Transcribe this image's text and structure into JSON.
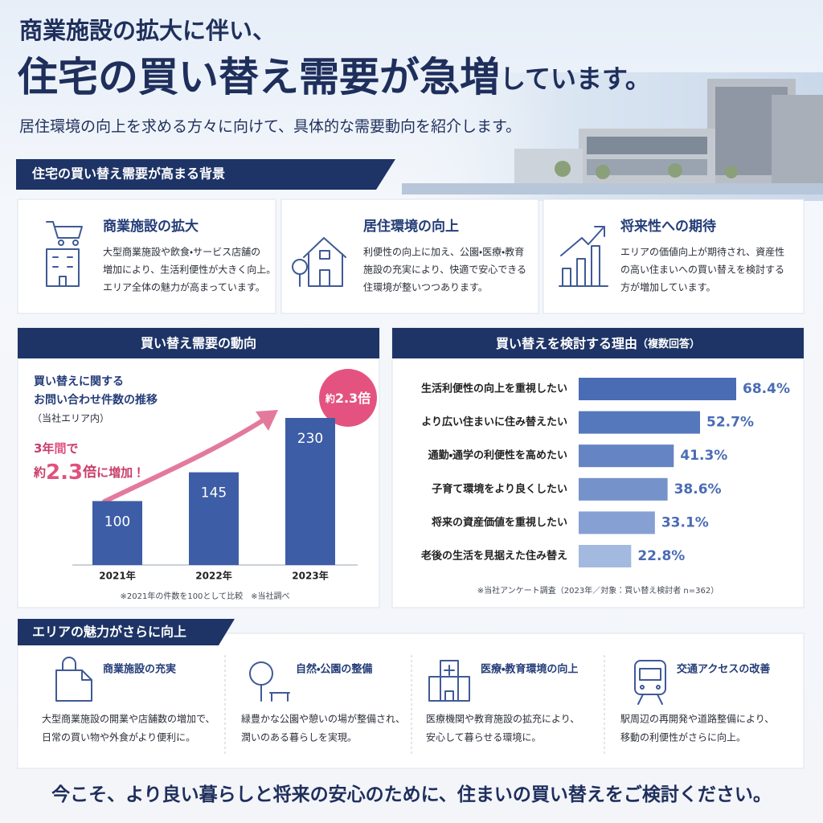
{
  "header": {
    "lead": "商業施設の拡大に伴い、",
    "title_main": "住宅の買い替え需要が急増",
    "title_tail": "しています。",
    "subtitle": "居住環境の向上を求める方々に向けて、具体的な需要動向を紹介します。"
  },
  "background": {
    "title": "住宅の買い替え需要が高まる背景",
    "cards": [
      {
        "title": "商業施設の拡大",
        "lines": [
          "大型商業施設や飲食・サービス店舗の",
          "増加により、生活利便性が大きく向上。",
          "エリア全体の魅力が高まっています。"
        ]
      },
      {
        "title": "居住環境の向上",
        "lines": [
          "利便性の向上に加え、公園・医療・教育",
          "施設の充実により、快適で安心できる",
          "住環境が整いつつあります。"
        ]
      },
      {
        "title": "将来性への期待",
        "lines": [
          "エリアの価値向上が期待され、資産性",
          "の高い住まいへの買い替えを検討する",
          "方が増加しています。"
        ]
      }
    ]
  },
  "chart_data": [
    {
      "type": "bar",
      "title": "買い替え需要の動向",
      "subtitle": [
        "買い替えに関する",
        "お問い合わせ件数の推移",
        "（当社エリア内）"
      ],
      "annotation": [
        [
          "3年",
          "間",
          "で"
        ],
        [
          "約",
          "2.3",
          "倍",
          "に増加！"
        ]
      ],
      "badge": [
        "約",
        "2.3倍"
      ],
      "categories": [
        "2021年",
        "2022年",
        "2023年"
      ],
      "values": [
        100,
        145,
        230
      ],
      "color": "#3d5da6",
      "note": "※2021年の件数を100として比較　※当社調べ"
    },
    {
      "type": "barh",
      "title": "買い替えを検討する理由",
      "title_note": "（複数回答）",
      "categories": [
        "生活利便性の向上を重視したい",
        "より広い住まいに住み替えたい",
        "通勤・通学の利便性を高めたい",
        "子育て環境をより良くしたい",
        "将来の資産価値を重視したい",
        "老後の生活を見据えた住み替え"
      ],
      "values": [
        68.4,
        52.7,
        41.3,
        38.6,
        33.1,
        22.8
      ],
      "value_labels": [
        "68.4%",
        "52.7%",
        "41.3%",
        "38.6%",
        "33.1%",
        "22.8%"
      ],
      "colors": [
        "#4a6cb5",
        "#5577bc",
        "#6584c3",
        "#7592cb",
        "#86a0d3",
        "#a4b9e0"
      ],
      "label_color": "#4a6cb5",
      "note": "※当社アンケート調査（2023年／対象：買い替え検討者 n=362）"
    }
  ],
  "appeal": {
    "title": "エリアの魅力がさらに向上",
    "items": [
      {
        "title": "商業施設の充実",
        "lines": [
          "大型商業施設の開業や店舗数の増加で、",
          "日常の買い物や外食がより便利に。"
        ]
      },
      {
        "title": "自然・公園の整備",
        "lines": [
          "緑豊かな公園や憩いの場が整備され、",
          "潤いのある暮らしを実現。"
        ]
      },
      {
        "title": "医療・教育環境の向上",
        "lines": [
          "医療機関や教育施設の拡充により、",
          "安心して暮らせる環境に。"
        ]
      },
      {
        "title": "交通アクセスの改善",
        "lines": [
          "駅周辺の再開発や道路整備により、",
          "移動の利便性がさらに向上。"
        ]
      }
    ]
  },
  "footer": "今こそ、より良い暮らしと将来の安心のために、住まいの買い替えをご検討ください。"
}
